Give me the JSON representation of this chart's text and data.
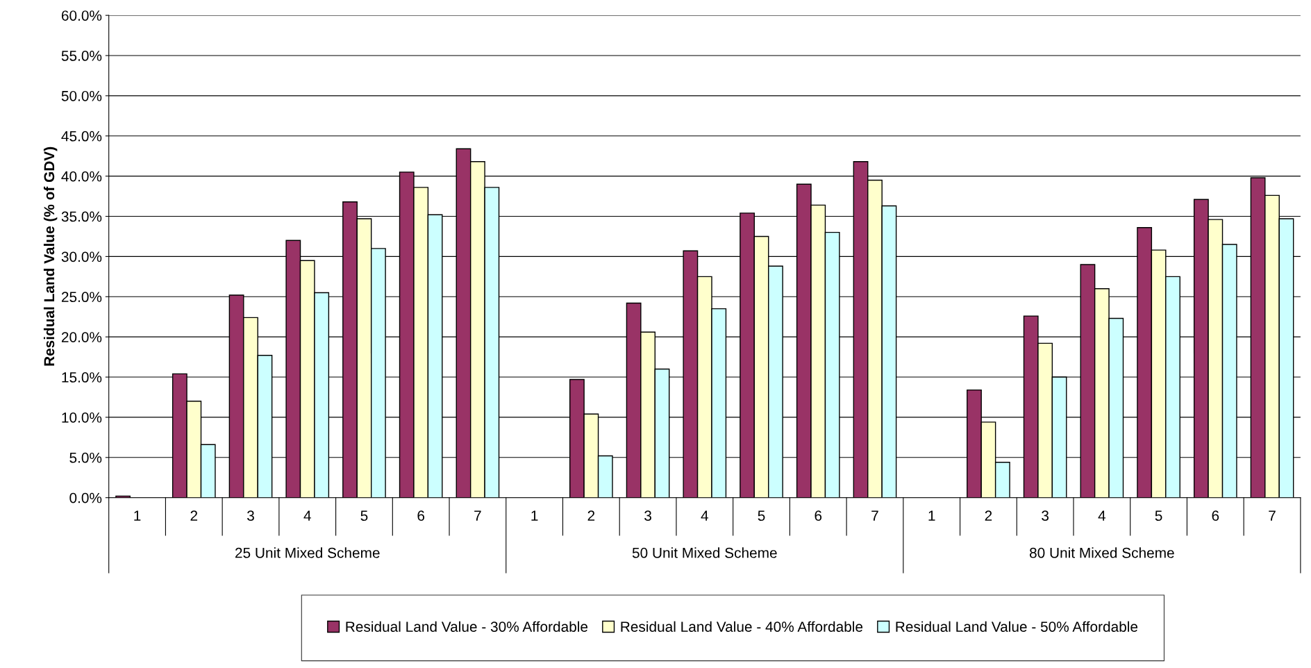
{
  "chart_data": {
    "type": "bar",
    "ylabel": "Residual Land Value (% of GDV)",
    "categories": [
      "1",
      "2",
      "3",
      "4",
      "5",
      "6",
      "7",
      "1",
      "2",
      "3",
      "4",
      "5",
      "6",
      "7",
      "1",
      "2",
      "3",
      "4",
      "5",
      "6",
      "7"
    ],
    "series": [
      {
        "name": "Residual Land Value - 30% Affordable",
        "color": "#993366",
        "values": [
          0.2,
          15.4,
          25.2,
          32.0,
          36.8,
          40.5,
          43.4,
          null,
          14.7,
          24.2,
          30.7,
          35.4,
          39.0,
          41.8,
          null,
          13.4,
          22.6,
          29.0,
          33.6,
          37.1,
          39.8
        ]
      },
      {
        "name": "Residual Land Value - 40% Affordable",
        "color": "#ffffcc",
        "values": [
          null,
          12.0,
          22.4,
          29.5,
          34.7,
          38.6,
          41.8,
          null,
          10.4,
          20.6,
          27.5,
          32.5,
          36.4,
          39.5,
          null,
          9.4,
          19.2,
          26.0,
          30.8,
          34.6,
          37.6
        ]
      },
      {
        "name": "Residual Land Value - 50% Affordable",
        "color": "#ccffff",
        "values": [
          null,
          6.6,
          17.7,
          25.5,
          31.0,
          35.2,
          38.6,
          null,
          5.2,
          16.0,
          23.5,
          28.8,
          33.0,
          36.3,
          null,
          4.4,
          15.0,
          22.3,
          27.5,
          31.5,
          34.7
        ]
      }
    ],
    "annotations": [
      "25 Unit Mixed Scheme",
      "50 Unit Mixed Scheme",
      "80 Unit Mixed Scheme"
    ],
    "ylim": [
      0,
      60
    ],
    "yticks": [
      {
        "value": 0,
        "label": "0.0%"
      },
      {
        "value": 5,
        "label": "5.0%"
      },
      {
        "value": 10,
        "label": "10.0%"
      },
      {
        "value": 15,
        "label": "15.0%"
      },
      {
        "value": 20,
        "label": "20.0%"
      },
      {
        "value": 25,
        "label": "25.0%"
      },
      {
        "value": 30,
        "label": "30.0%"
      },
      {
        "value": 35,
        "label": "35.0%"
      },
      {
        "value": 40,
        "label": "40.0%"
      },
      {
        "value": 45,
        "label": "45.0%"
      },
      {
        "value": 50,
        "label": "50.0%"
      },
      {
        "value": 55,
        "label": "55.0%"
      },
      {
        "value": 60,
        "label": "60.0%"
      }
    ],
    "grid": "y",
    "legend": "bottom"
  }
}
